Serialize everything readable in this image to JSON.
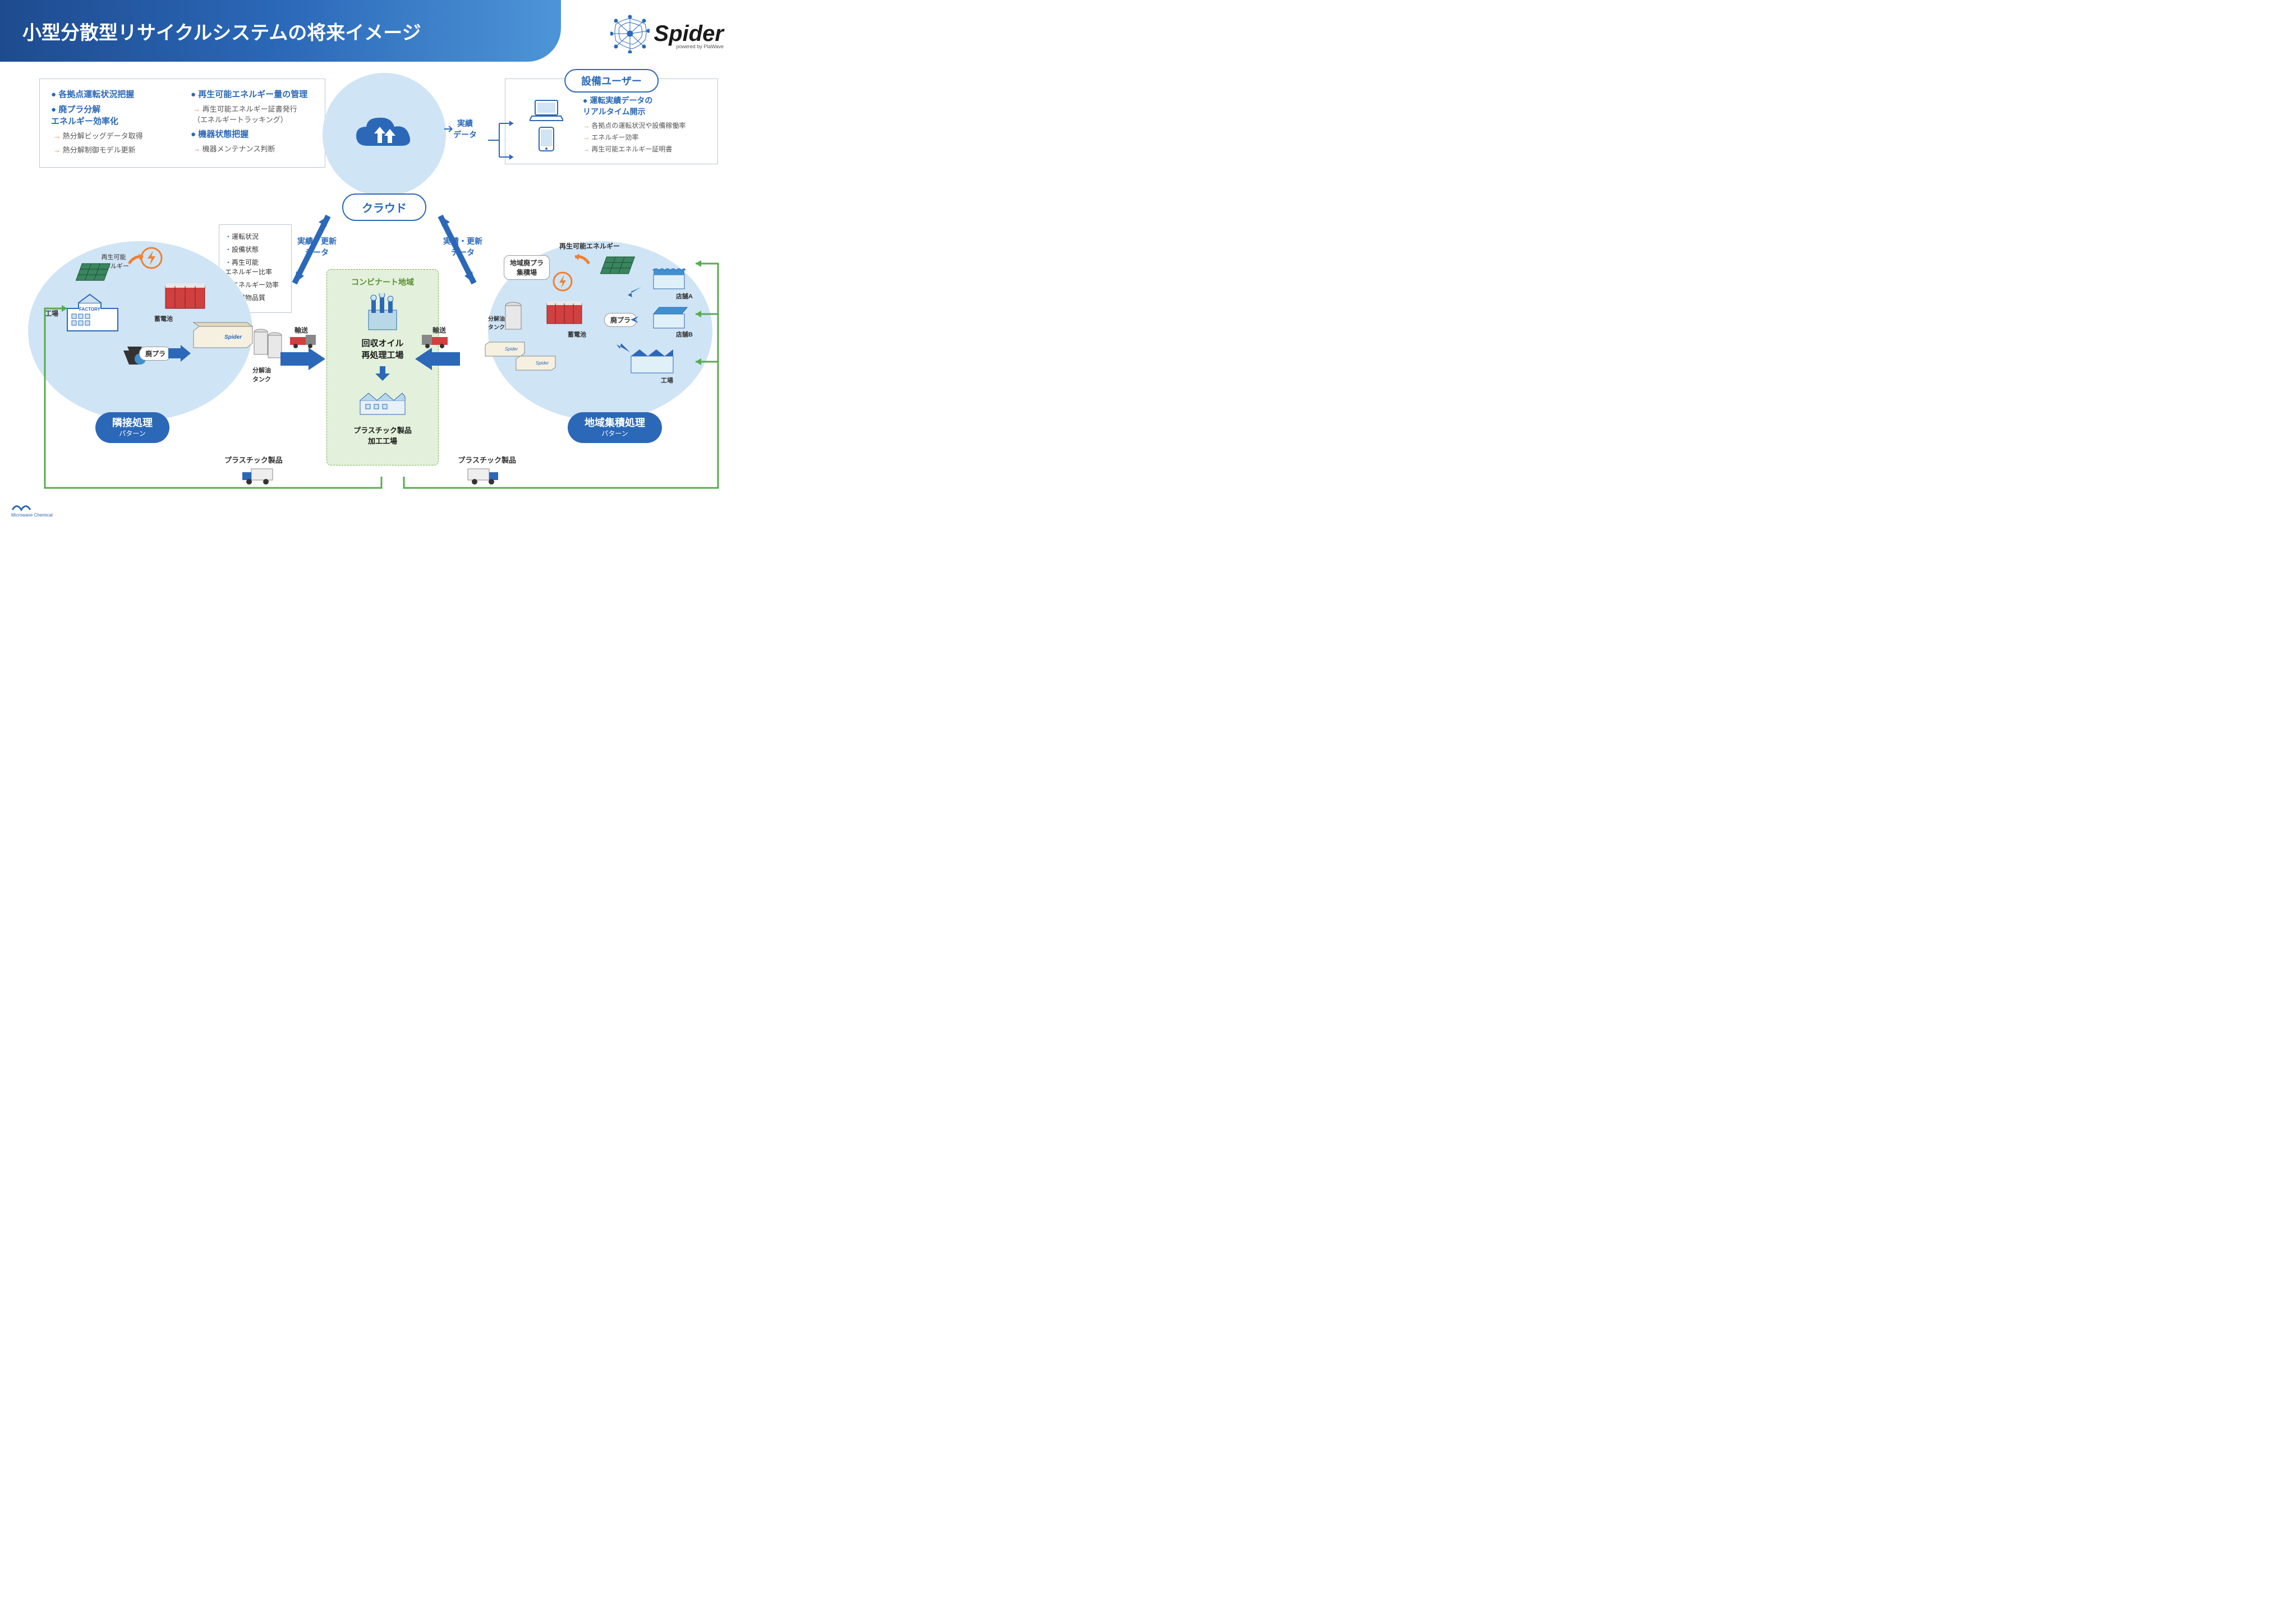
{
  "header": {
    "title": "小型分散型リサイクルシステムの将来イメージ"
  },
  "logo": {
    "name": "Spider",
    "tagline": "powered by PlaWave"
  },
  "cloud_features": {
    "col1": [
      {
        "type": "main",
        "text": "各拠点運転状況把握"
      },
      {
        "type": "main",
        "text": "廃プラ分解\nエネルギー効率化"
      },
      {
        "type": "sub",
        "text": "熱分解ビッグデータ取得"
      },
      {
        "type": "sub",
        "text": "熱分解制御モデル更新"
      }
    ],
    "col2": [
      {
        "type": "main",
        "text": "再生可能エネルギー量の管理"
      },
      {
        "type": "sub",
        "text": "再生可能エネルギー証書発行\n（エネルギートラッキング）"
      },
      {
        "type": "main",
        "text": "機器状態把握"
      },
      {
        "type": "sub",
        "text": "機器メンテナンス判断"
      }
    ]
  },
  "cloud_label": "クラウド",
  "user_box": {
    "title": "設備ユーザー",
    "main": "運転実績データの\nリアルタイム開示",
    "subs": [
      "各拠点の運転状況や設備稼働率",
      "エネルギー効率",
      "再生可能エネルギー証明書"
    ]
  },
  "data_labels": {
    "results_data": "実績\nデータ",
    "results_update": "実績・更新\nデータ"
  },
  "metrics": [
    "運転状況",
    "設備状態",
    "再生可能\nエネルギー比率",
    "エネルギー効率",
    "生成物品質"
  ],
  "center": {
    "area_title": "コンビナート地域",
    "plant1": "回収オイル\n再処理工場",
    "plant2": "プラスチック製品\n加工工場"
  },
  "patterns": {
    "left": {
      "title": "隣接処理",
      "sub": "パターン"
    },
    "right": {
      "title": "地域集積処理",
      "sub": "パターン"
    }
  },
  "misc": {
    "transport": "輸送",
    "plastic_product": "プラスチック製品",
    "renewable_energy": "再生可能\nエネルギー",
    "renewable_energy_one": "再生可能エネルギー",
    "factory": "工場",
    "battery": "蓄電池",
    "waste_plastic": "廃プラ",
    "oil_tank": "分解油\nタンク",
    "local_waste": "地域廃プラ\n集積場",
    "store_a": "店舗A",
    "store_b": "店舗B"
  },
  "footer": "Microwave Chemical",
  "colors": {
    "primary": "#2b68b8",
    "header_dark": "#1e4b8f",
    "header_light": "#4d95d8",
    "circle_bg": "#cfe4f5",
    "green_bg": "#e3f0db",
    "green_border": "#7ab050",
    "green_text": "#5a9030",
    "orange": "#f08030",
    "green_line": "#5aaa50"
  }
}
